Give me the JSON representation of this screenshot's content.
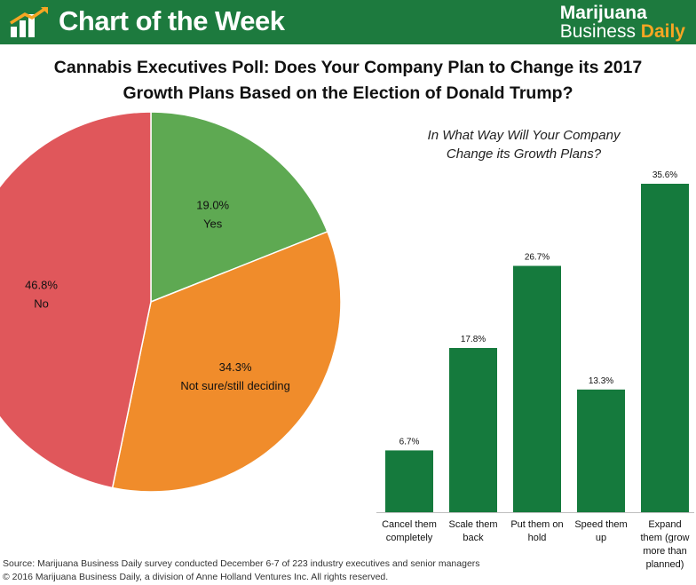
{
  "header": {
    "banner_title": "Chart of the Week",
    "brand_line1": "Marijuana",
    "brand_line2a": "Business ",
    "brand_line2b": "Daily",
    "logo_icon": "growth-bar-chart-icon",
    "colors": {
      "banner": "#1d7a3e",
      "brand_accent": "#f6a623"
    }
  },
  "title": {
    "line1": "Cannabis Executives Poll: Does Your Company Plan to Change its 2017",
    "line2": "Growth Plans Based on the Election of Donald Trump?"
  },
  "chart_data": [
    {
      "type": "pie",
      "slices": [
        {
          "label": "Yes",
          "value": 19.0,
          "display": "19.0%",
          "color": "#5ea952"
        },
        {
          "label": "Not sure/still deciding",
          "value": 34.3,
          "display": "34.3%",
          "color": "#f08c2b"
        },
        {
          "label": "No",
          "value": 46.8,
          "display": "46.8%",
          "color": "#e0575b"
        }
      ]
    },
    {
      "type": "bar",
      "title_line1": "In What Way Will Your Company",
      "title_line2": "Change its Growth Plans?",
      "categories": [
        [
          "Cancel them",
          "completely"
        ],
        [
          "Scale them",
          "back"
        ],
        [
          "Put them on",
          "hold"
        ],
        [
          "Speed them",
          "up"
        ],
        [
          "Expand",
          "them (grow",
          "more than",
          "planned)"
        ]
      ],
      "values": [
        6.7,
        17.8,
        26.7,
        13.3,
        35.6
      ],
      "value_labels": [
        "6.7%",
        "17.8%",
        "26.7%",
        "13.3%",
        "35.6%"
      ],
      "ylim": [
        0,
        35.6
      ],
      "color": "#157a3d",
      "grid": false
    }
  ],
  "footer": {
    "source": "Source: Marijuana Business Daily survey conducted December 6-7 of 223 industry executives and senior managers",
    "copyright": "© 2016 Marijuana Business Daily, a division of Anne Holland Ventures Inc. All rights reserved."
  }
}
